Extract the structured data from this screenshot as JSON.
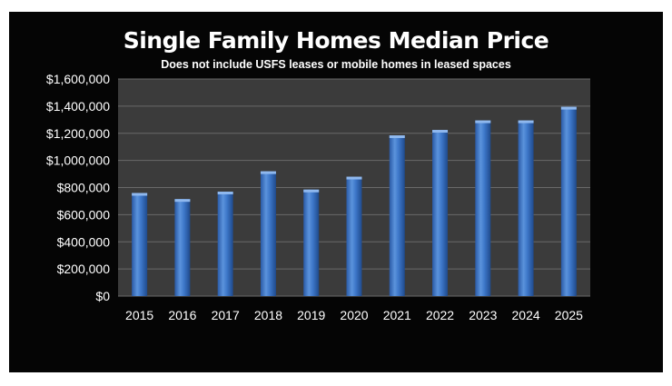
{
  "chart_data": {
    "type": "bar",
    "title": "Single Family Homes Median Price",
    "subtitle": "Does not include USFS leases or mobile homes in leased spaces",
    "categories": [
      "2015",
      "2016",
      "2017",
      "2018",
      "2019",
      "2020",
      "2021",
      "2022",
      "2023",
      "2024",
      "2025"
    ],
    "values": [
      760000,
      715000,
      770000,
      920000,
      785000,
      880000,
      1185000,
      1225000,
      1295000,
      1295000,
      1395000
    ],
    "ylim": [
      0,
      1600000
    ],
    "yticks": [
      "$0",
      "$200,000",
      "$400,000",
      "$600,000",
      "$800,000",
      "$1,000,000",
      "$1,200,000",
      "$1,400,000",
      "$1,600,000"
    ],
    "xlabel": "",
    "ylabel": "",
    "grid": true,
    "legend": "none",
    "colors": {
      "bar": "#3d77c9",
      "bar_highlight": "#8fb8ee",
      "plot_bg": "#3b3b3b",
      "frame_bg": "#050505",
      "grid": "#6a6a6a"
    }
  }
}
